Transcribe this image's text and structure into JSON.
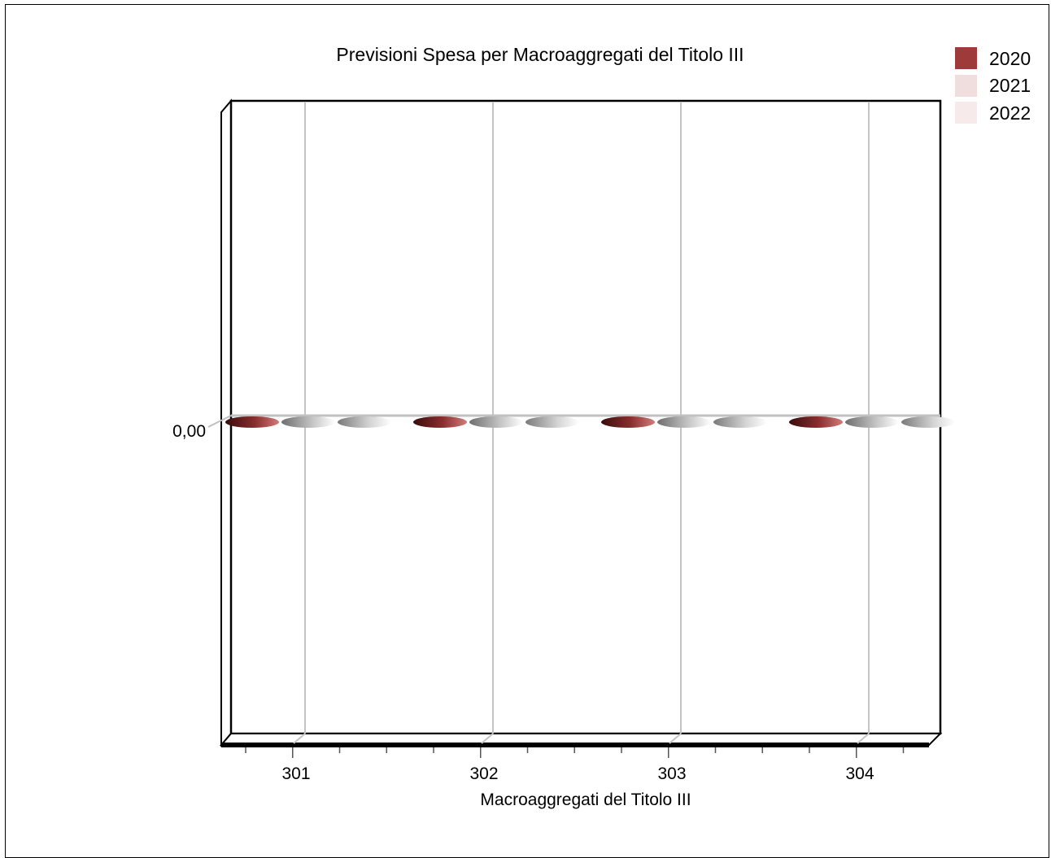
{
  "chart_data": {
    "type": "bar",
    "title": "Previsioni Spesa per Macroaggregati del Titolo III",
    "xlabel": "Macroaggregati del Titolo III",
    "ylabel": "",
    "categories": [
      "301",
      "302",
      "303",
      "304"
    ],
    "y_tick_labels": [
      "0,00"
    ],
    "ylim": [
      -1,
      1
    ],
    "series": [
      {
        "name": "2020",
        "values": [
          0,
          0,
          0,
          0
        ],
        "color": "#9e3a3a"
      },
      {
        "name": "2021",
        "values": [
          0,
          0,
          0,
          0
        ],
        "color": "#f0dede"
      },
      {
        "name": "2022",
        "values": [
          0,
          0,
          0,
          0
        ],
        "color": "#f6eaea"
      }
    ],
    "legend_position": "top-right",
    "grid": true,
    "style": "3d"
  }
}
